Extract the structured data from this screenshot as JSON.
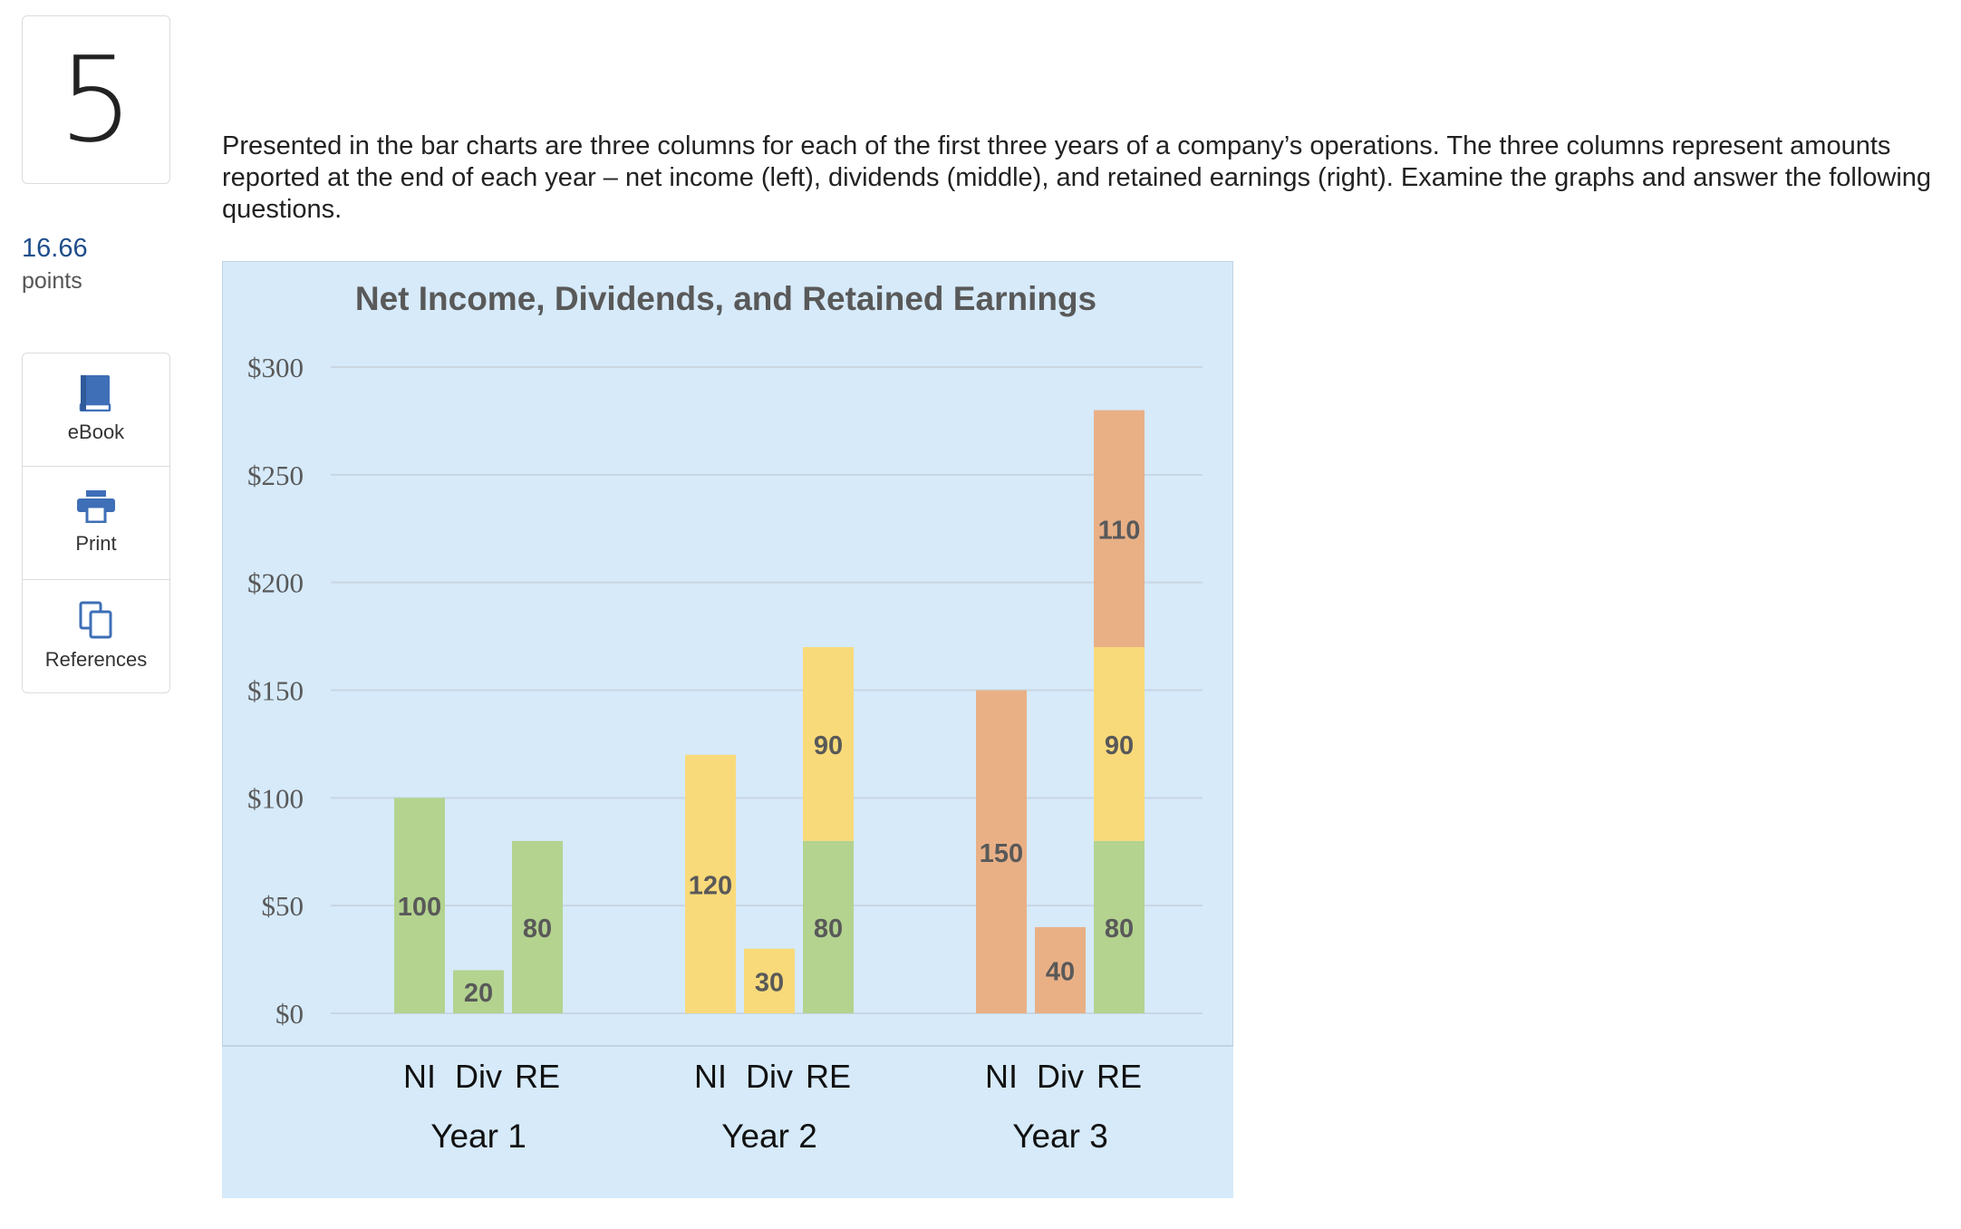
{
  "question_number": "5",
  "points": {
    "value": "16.66",
    "label": "points"
  },
  "tools": [
    {
      "label": "eBook",
      "icon": "book-icon"
    },
    {
      "label": "Print",
      "icon": "printer-icon"
    },
    {
      "label": "References",
      "icon": "copy-icon"
    }
  ],
  "question_text": "Presented in the bar charts are three columns for each of the first three years of a company’s operations. The three columns represent amounts reported at the end of each year – net income (left), dividends (middle), and retained earnings (right). Examine the graphs and answer the following questions.",
  "colors": {
    "accent": "#1f4e8c",
    "chart_bg": "#d6eafa",
    "green": "#b3d38f",
    "yellow": "#f9da7a",
    "orange": "#e9b086"
  },
  "chart_data": {
    "type": "bar",
    "title": "Net Income, Dividends, and Retained Earnings",
    "ylim": [
      0,
      300
    ],
    "yticks": [
      0,
      50,
      100,
      150,
      200,
      250,
      300
    ],
    "ytick_labels": [
      "$0",
      "$50",
      "$100",
      "$150",
      "$200",
      "$250",
      "$300"
    ],
    "grid": true,
    "groups": [
      {
        "label": "Year 1",
        "bars": [
          {
            "label": "NI",
            "segments": [
              {
                "value": 100,
                "color": "#b3d38f",
                "label": "100"
              }
            ]
          },
          {
            "label": "Div",
            "segments": [
              {
                "value": 20,
                "color": "#b3d38f",
                "label": "20"
              }
            ]
          },
          {
            "label": "RE",
            "segments": [
              {
                "value": 80,
                "color": "#b3d38f",
                "label": "80"
              }
            ]
          }
        ]
      },
      {
        "label": "Year 2",
        "bars": [
          {
            "label": "NI",
            "segments": [
              {
                "value": 120,
                "color": "#f9da7a",
                "label": "120"
              }
            ]
          },
          {
            "label": "Div",
            "segments": [
              {
                "value": 30,
                "color": "#f9da7a",
                "label": "30"
              }
            ]
          },
          {
            "label": "RE",
            "segments": [
              {
                "value": 80,
                "color": "#b3d38f",
                "label": "80"
              },
              {
                "value": 90,
                "color": "#f9da7a",
                "label": "90"
              }
            ]
          }
        ]
      },
      {
        "label": "Year 3",
        "bars": [
          {
            "label": "NI",
            "segments": [
              {
                "value": 150,
                "color": "#e9b086",
                "label": "150"
              }
            ]
          },
          {
            "label": "Div",
            "segments": [
              {
                "value": 40,
                "color": "#e9b086",
                "label": "40"
              }
            ]
          },
          {
            "label": "RE",
            "segments": [
              {
                "value": 80,
                "color": "#b3d38f",
                "label": "80"
              },
              {
                "value": 90,
                "color": "#f9da7a",
                "label": "90"
              },
              {
                "value": 110,
                "color": "#e9b086",
                "label": "110"
              }
            ]
          }
        ]
      }
    ]
  }
}
